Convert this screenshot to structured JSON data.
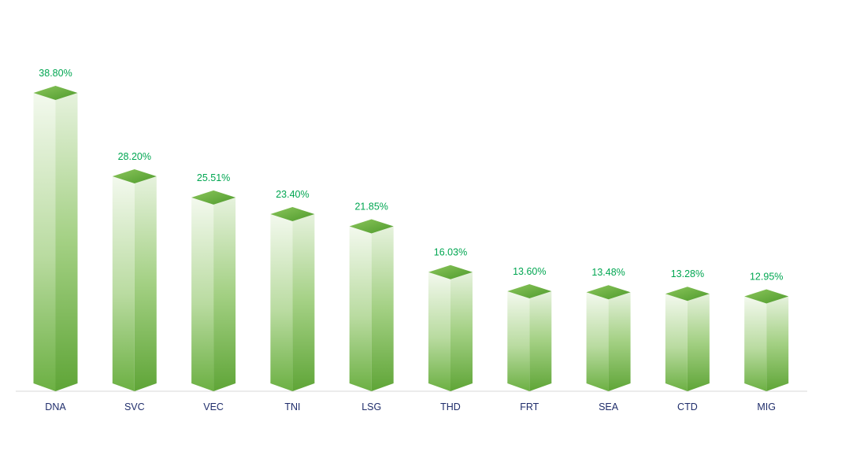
{
  "chart_data": {
    "type": "bar",
    "style": "3d-prism",
    "title": "",
    "xlabel": "",
    "ylabel": "",
    "ylim": [
      0,
      40
    ],
    "grid": false,
    "legend": "none",
    "categories": [
      "DNA",
      "SVC",
      "VEC",
      "TNI",
      "LSG",
      "THD",
      "FRT",
      "SEA",
      "CTD",
      "MIG"
    ],
    "values": [
      38.8,
      28.2,
      25.51,
      23.4,
      21.85,
      16.03,
      13.6,
      13.48,
      13.28,
      12.95
    ],
    "value_labels": [
      "38.80%",
      "28.20%",
      "25.51%",
      "23.40%",
      "21.85%",
      "16.03%",
      "13.60%",
      "13.48%",
      "13.28%",
      "12.95%"
    ],
    "colors": {
      "bar_light": "#f3f9ee",
      "bar_mid": "#b6d99b",
      "bar_dark": "#6cb043",
      "top_light": "#8cc65c",
      "top_dark": "#4e9a2c",
      "value_label": "#00a651",
      "tick_label": "#1f2d6b",
      "axis_line": "#d9d9d9"
    }
  }
}
